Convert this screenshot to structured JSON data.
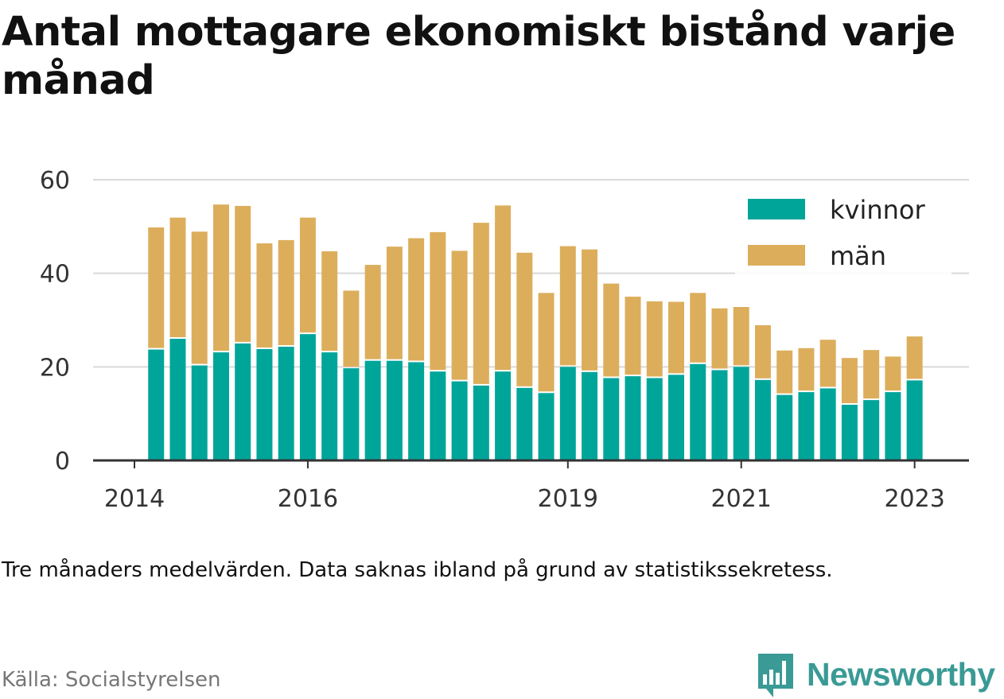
{
  "title": "Antal mottagare ekonomiskt bistånd varje månad",
  "note": "Tre månaders medelvärden. Data saknas ibland på grund av statistikssekretess.",
  "source": "Källa: Socialstyrelsen",
  "brand": {
    "name": "Newsworthy",
    "icon": "bar-chart-speech-bubble-icon",
    "color": "#3a9a95"
  },
  "chart_data": {
    "type": "bar",
    "stacked": true,
    "x_unit": "quarter",
    "x": [
      "2014-Q2",
      "2014-Q3",
      "2014-Q4",
      "2015-Q1",
      "2015-Q2",
      "2015-Q3",
      "2015-Q4",
      "2016-Q1",
      "2016-Q2",
      "2016-Q3",
      "2016-Q4",
      "2017-Q1",
      "2017-Q2",
      "2017-Q3",
      "2017-Q4",
      "2018-Q1",
      "2018-Q2",
      "2018-Q3",
      "2018-Q4",
      "2019-Q1",
      "2019-Q2",
      "2019-Q3",
      "2019-Q4",
      "2020-Q1",
      "2020-Q2",
      "2020-Q3",
      "2020-Q4",
      "2021-Q1",
      "2021-Q2",
      "2021-Q3",
      "2021-Q4",
      "2022-Q1",
      "2022-Q2",
      "2022-Q3",
      "2022-Q4",
      "2023-Q1"
    ],
    "series": [
      {
        "name": "kvinnor",
        "color": "#00a59a",
        "values": [
          23.7,
          26.0,
          20.3,
          23.1,
          25.0,
          23.8,
          24.3,
          27.0,
          23.1,
          19.7,
          21.3,
          21.3,
          21.0,
          19.0,
          16.9,
          16.0,
          19.0,
          15.5,
          14.4,
          20.0,
          18.9,
          17.6,
          18.0,
          17.6,
          18.3,
          20.6,
          19.3,
          20.0,
          17.2,
          14.0,
          14.6,
          15.4,
          11.9,
          12.9,
          14.6,
          17.1
        ]
      },
      {
        "name": "män",
        "color": "#dcae5c",
        "values": [
          26.1,
          25.9,
          28.6,
          31.6,
          29.4,
          22.6,
          22.8,
          24.9,
          21.6,
          16.6,
          20.5,
          24.4,
          26.5,
          29.8,
          27.9,
          34.8,
          35.5,
          28.9,
          21.4,
          25.8,
          26.2,
          20.2,
          17.0,
          16.4,
          15.6,
          15.2,
          13.2,
          12.8,
          11.7,
          9.5,
          9.4,
          10.4,
          10.0,
          10.7,
          7.6,
          9.4
        ]
      }
    ],
    "ylim": [
      0,
      60
    ],
    "yticks": [
      0,
      20,
      40,
      60
    ],
    "xticks": [
      "2014",
      "2016",
      "2019",
      "2021",
      "2023"
    ],
    "xtick_positions": [
      "2014-Q1",
      "2016-Q1",
      "2019-Q1",
      "2021-Q1",
      "2023-Q1"
    ],
    "grid": true,
    "legend": "top-right",
    "xlabel": "",
    "ylabel": ""
  }
}
